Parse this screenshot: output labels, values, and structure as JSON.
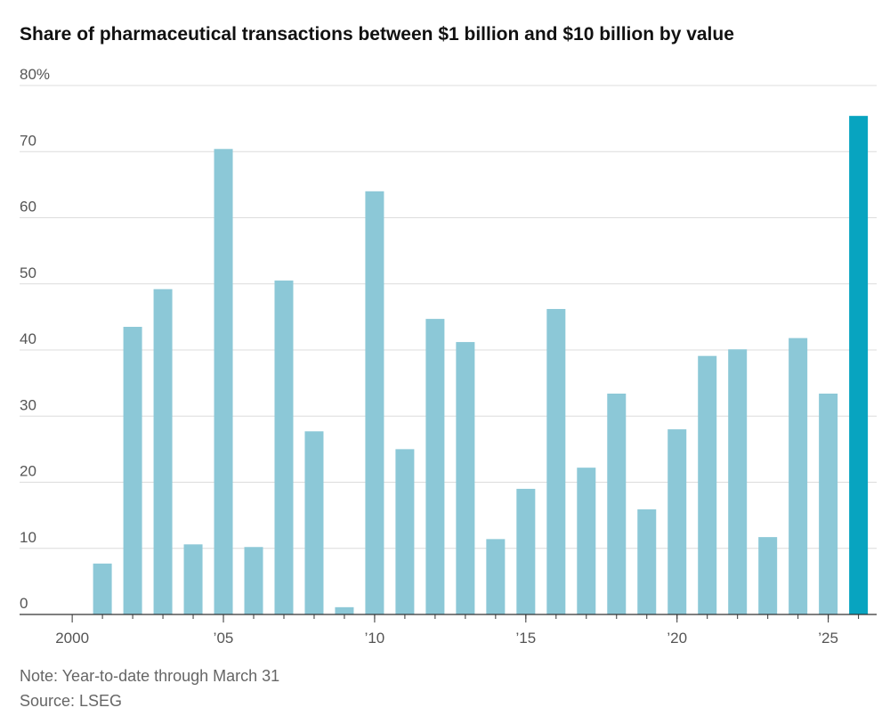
{
  "chart_data": {
    "type": "bar",
    "title": "Share of pharmaceutical transactions between $1 billion and $10 billion by value",
    "note": "Note: Year-to-date through March 31",
    "source": "Source: LSEG",
    "x": [
      2001,
      2002,
      2003,
      2004,
      2005,
      2006,
      2007,
      2008,
      2009,
      2010,
      2011,
      2012,
      2013,
      2014,
      2015,
      2016,
      2017,
      2018,
      2019,
      2020,
      2021,
      2022,
      2023,
      2024,
      2025,
      2026
    ],
    "values": [
      7.7,
      43.5,
      49.2,
      10.6,
      70.4,
      10.2,
      50.5,
      27.7,
      1.1,
      64.0,
      25.0,
      44.7,
      41.2,
      11.4,
      19.0,
      46.2,
      22.2,
      33.4,
      15.9,
      28.0,
      39.1,
      40.1,
      11.7,
      41.8,
      33.4,
      75.4
    ],
    "colors": [
      "#8cc8d7",
      "#8cc8d7",
      "#8cc8d7",
      "#8cc8d7",
      "#8cc8d7",
      "#8cc8d7",
      "#8cc8d7",
      "#8cc8d7",
      "#8cc8d7",
      "#8cc8d7",
      "#8cc8d7",
      "#8cc8d7",
      "#8cc8d7",
      "#8cc8d7",
      "#8cc8d7",
      "#8cc8d7",
      "#8cc8d7",
      "#8cc8d7",
      "#8cc8d7",
      "#8cc8d7",
      "#8cc8d7",
      "#8cc8d7",
      "#8cc8d7",
      "#8cc8d7",
      "#8cc8d7",
      "#08a4c0"
    ],
    "xlim": [
      1998.26,
      2026.6
    ],
    "xticks": [
      2000,
      {
        "value": 2005,
        "label": "’05"
      },
      {
        "value": 2010,
        "label": "’10"
      },
      {
        "value": 2015,
        "label": "’15"
      },
      {
        "value": 2020,
        "label": "’20"
      },
      {
        "value": 2025,
        "label": "’25"
      }
    ],
    "ylim": [
      0,
      80
    ],
    "yticks": [
      0,
      10,
      20,
      30,
      40,
      50,
      60,
      70,
      {
        "value": 80,
        "label": "80%"
      }
    ],
    "grid": true
  }
}
